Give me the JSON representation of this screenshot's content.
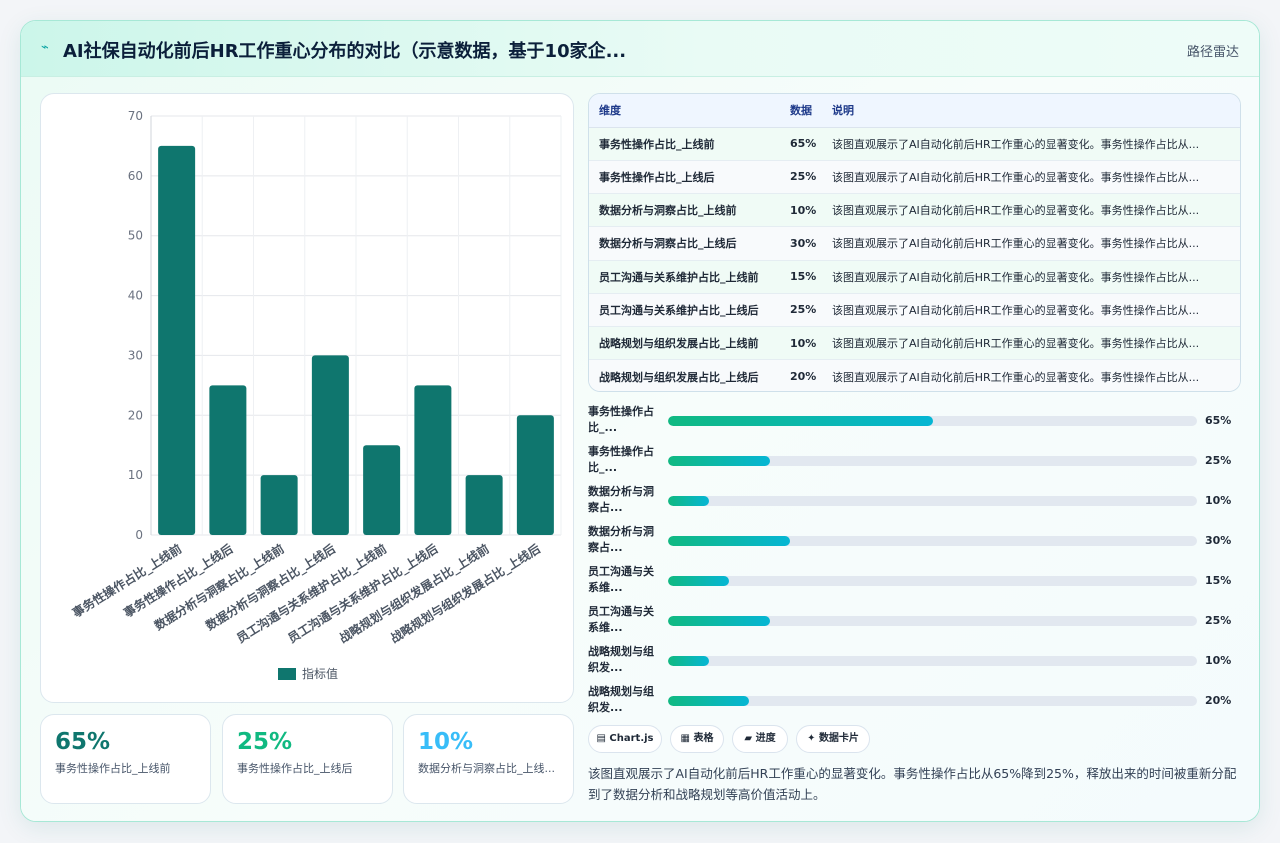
{
  "header": {
    "title": "AI社保自动化前后HR工作重心分布的对比（示意数据，基于10家企...",
    "badge": "路径雷达"
  },
  "colors": {
    "bar": "#0f766e",
    "accent_teal": "#10b981",
    "accent_cyan": "#06b6d4",
    "kpi1": "#0f766e",
    "kpi2": "#10b981",
    "kpi3": "#38bdf8"
  },
  "chart_data": {
    "type": "bar",
    "categories": [
      "事务性操作占比_上线前",
      "事务性操作占比_上线后",
      "数据分析与洞察占比_上线前",
      "数据分析与洞察占比_上线后",
      "员工沟通与关系维护占比_上线前",
      "员工沟通与关系维护占比_上线后",
      "战略规划与组织发展占比_上线前",
      "战略规划与组织发展占比_上线后"
    ],
    "series": [
      {
        "name": "指标值",
        "values": [
          65,
          25,
          10,
          30,
          15,
          25,
          10,
          20
        ]
      }
    ],
    "ylim": [
      0,
      70
    ],
    "yticks": [
      0,
      10,
      20,
      30,
      40,
      50,
      60,
      70
    ],
    "grid": true,
    "legend": "bottom"
  },
  "kpis": [
    {
      "value": "65%",
      "label": "事务性操作占比_上线前"
    },
    {
      "value": "25%",
      "label": "事务性操作占比_上线后"
    },
    {
      "value": "10%",
      "label": "数据分析与洞察占比_上线..."
    }
  ],
  "table": {
    "headers": [
      "维度",
      "数据",
      "说明"
    ],
    "rows": [
      {
        "dim": "事务性操作占比_上线前",
        "val": "65%",
        "note": "该图直观展示了AI自动化前后HR工作重心的显著变化。事务性操作占比从..."
      },
      {
        "dim": "事务性操作占比_上线后",
        "val": "25%",
        "note": "该图直观展示了AI自动化前后HR工作重心的显著变化。事务性操作占比从..."
      },
      {
        "dim": "数据分析与洞察占比_上线前",
        "val": "10%",
        "note": "该图直观展示了AI自动化前后HR工作重心的显著变化。事务性操作占比从..."
      },
      {
        "dim": "数据分析与洞察占比_上线后",
        "val": "30%",
        "note": "该图直观展示了AI自动化前后HR工作重心的显著变化。事务性操作占比从..."
      },
      {
        "dim": "员工沟通与关系维护占比_上线前",
        "val": "15%",
        "note": "该图直观展示了AI自动化前后HR工作重心的显著变化。事务性操作占比从..."
      },
      {
        "dim": "员工沟通与关系维护占比_上线后",
        "val": "25%",
        "note": "该图直观展示了AI自动化前后HR工作重心的显著变化。事务性操作占比从..."
      },
      {
        "dim": "战略规划与组织发展占比_上线前",
        "val": "10%",
        "note": "该图直观展示了AI自动化前后HR工作重心的显著变化。事务性操作占比从..."
      },
      {
        "dim": "战略规划与组织发展占比_上线后",
        "val": "20%",
        "note": "该图直观展示了AI自动化前后HR工作重心的显著变化。事务性操作占比从..."
      }
    ]
  },
  "progress": [
    {
      "label": "事务性操作占比_...",
      "value": 65,
      "text": "65%"
    },
    {
      "label": "事务性操作占比_...",
      "value": 25,
      "text": "25%"
    },
    {
      "label": "数据分析与洞察占...",
      "value": 10,
      "text": "10%"
    },
    {
      "label": "数据分析与洞察占...",
      "value": 30,
      "text": "30%"
    },
    {
      "label": "员工沟通与关系维...",
      "value": 15,
      "text": "15%"
    },
    {
      "label": "员工沟通与关系维...",
      "value": 25,
      "text": "25%"
    },
    {
      "label": "战略规划与组织发...",
      "value": 10,
      "text": "10%"
    },
    {
      "label": "战略规划与组织发...",
      "value": 20,
      "text": "20%"
    }
  ],
  "chips": [
    {
      "icon": "chart-icon",
      "glyph": "▤",
      "label": "Chart.js"
    },
    {
      "icon": "table-icon",
      "glyph": "▦",
      "label": "表格"
    },
    {
      "icon": "progress-icon",
      "glyph": "▰",
      "label": "进度"
    },
    {
      "icon": "card-icon",
      "glyph": "✦",
      "label": "数据卡片"
    }
  ],
  "description": "该图直观展示了AI自动化前后HR工作重心的显著变化。事务性操作占比从65%降到25%，释放出来的时间被重新分配到了数据分析和战略规划等高价值活动上。"
}
